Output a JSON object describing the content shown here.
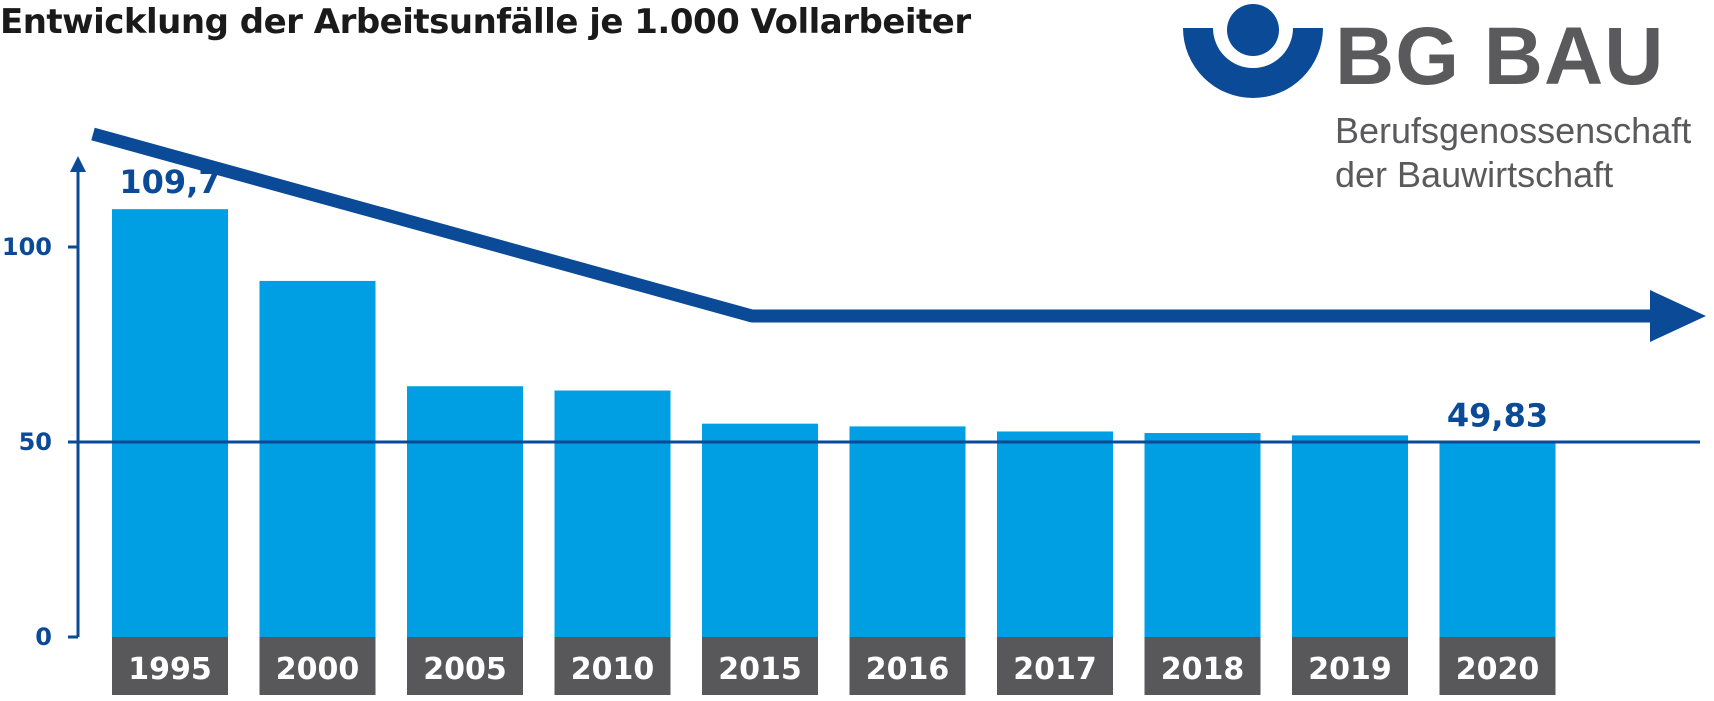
{
  "title": "Entwicklung der Arbeitsunfälle je 1.000 Vollarbeiter",
  "logo": {
    "name": "BG BAU",
    "subtitle_line1": "Berufsgenossenschaft",
    "subtitle_line2": "der Bauwirtschaft",
    "color_text": "#5a5a5c",
    "color_mark": "#0a4a97"
  },
  "colors": {
    "bar": "#009fe3",
    "axis": "#0a4a97",
    "label_box": "#58585a",
    "label_text": "#ffffff",
    "trend": "#0a4a97"
  },
  "chart_data": {
    "type": "bar",
    "categories": [
      "1995",
      "2000",
      "2005",
      "2010",
      "2015",
      "2016",
      "2017",
      "2018",
      "2019",
      "2020"
    ],
    "values": [
      109.7,
      91.3,
      64.3,
      63.2,
      54.7,
      54.0,
      52.7,
      52.3,
      51.7,
      49.83
    ],
    "value_labels": [
      {
        "index": 0,
        "text": "109,7"
      },
      {
        "index": 9,
        "text": "49,83"
      }
    ],
    "yticks": [
      {
        "value": 0,
        "label": "0"
      },
      {
        "value": 50,
        "label": "50"
      },
      {
        "value": 100,
        "label": "100"
      }
    ],
    "ylim": [
      0,
      120
    ],
    "reference_line": 50,
    "trend_arrow": {
      "from": "1995",
      "bend": "2015",
      "to": "2020",
      "meaning": "declining then flat"
    },
    "xlabel": "",
    "ylabel": ""
  }
}
